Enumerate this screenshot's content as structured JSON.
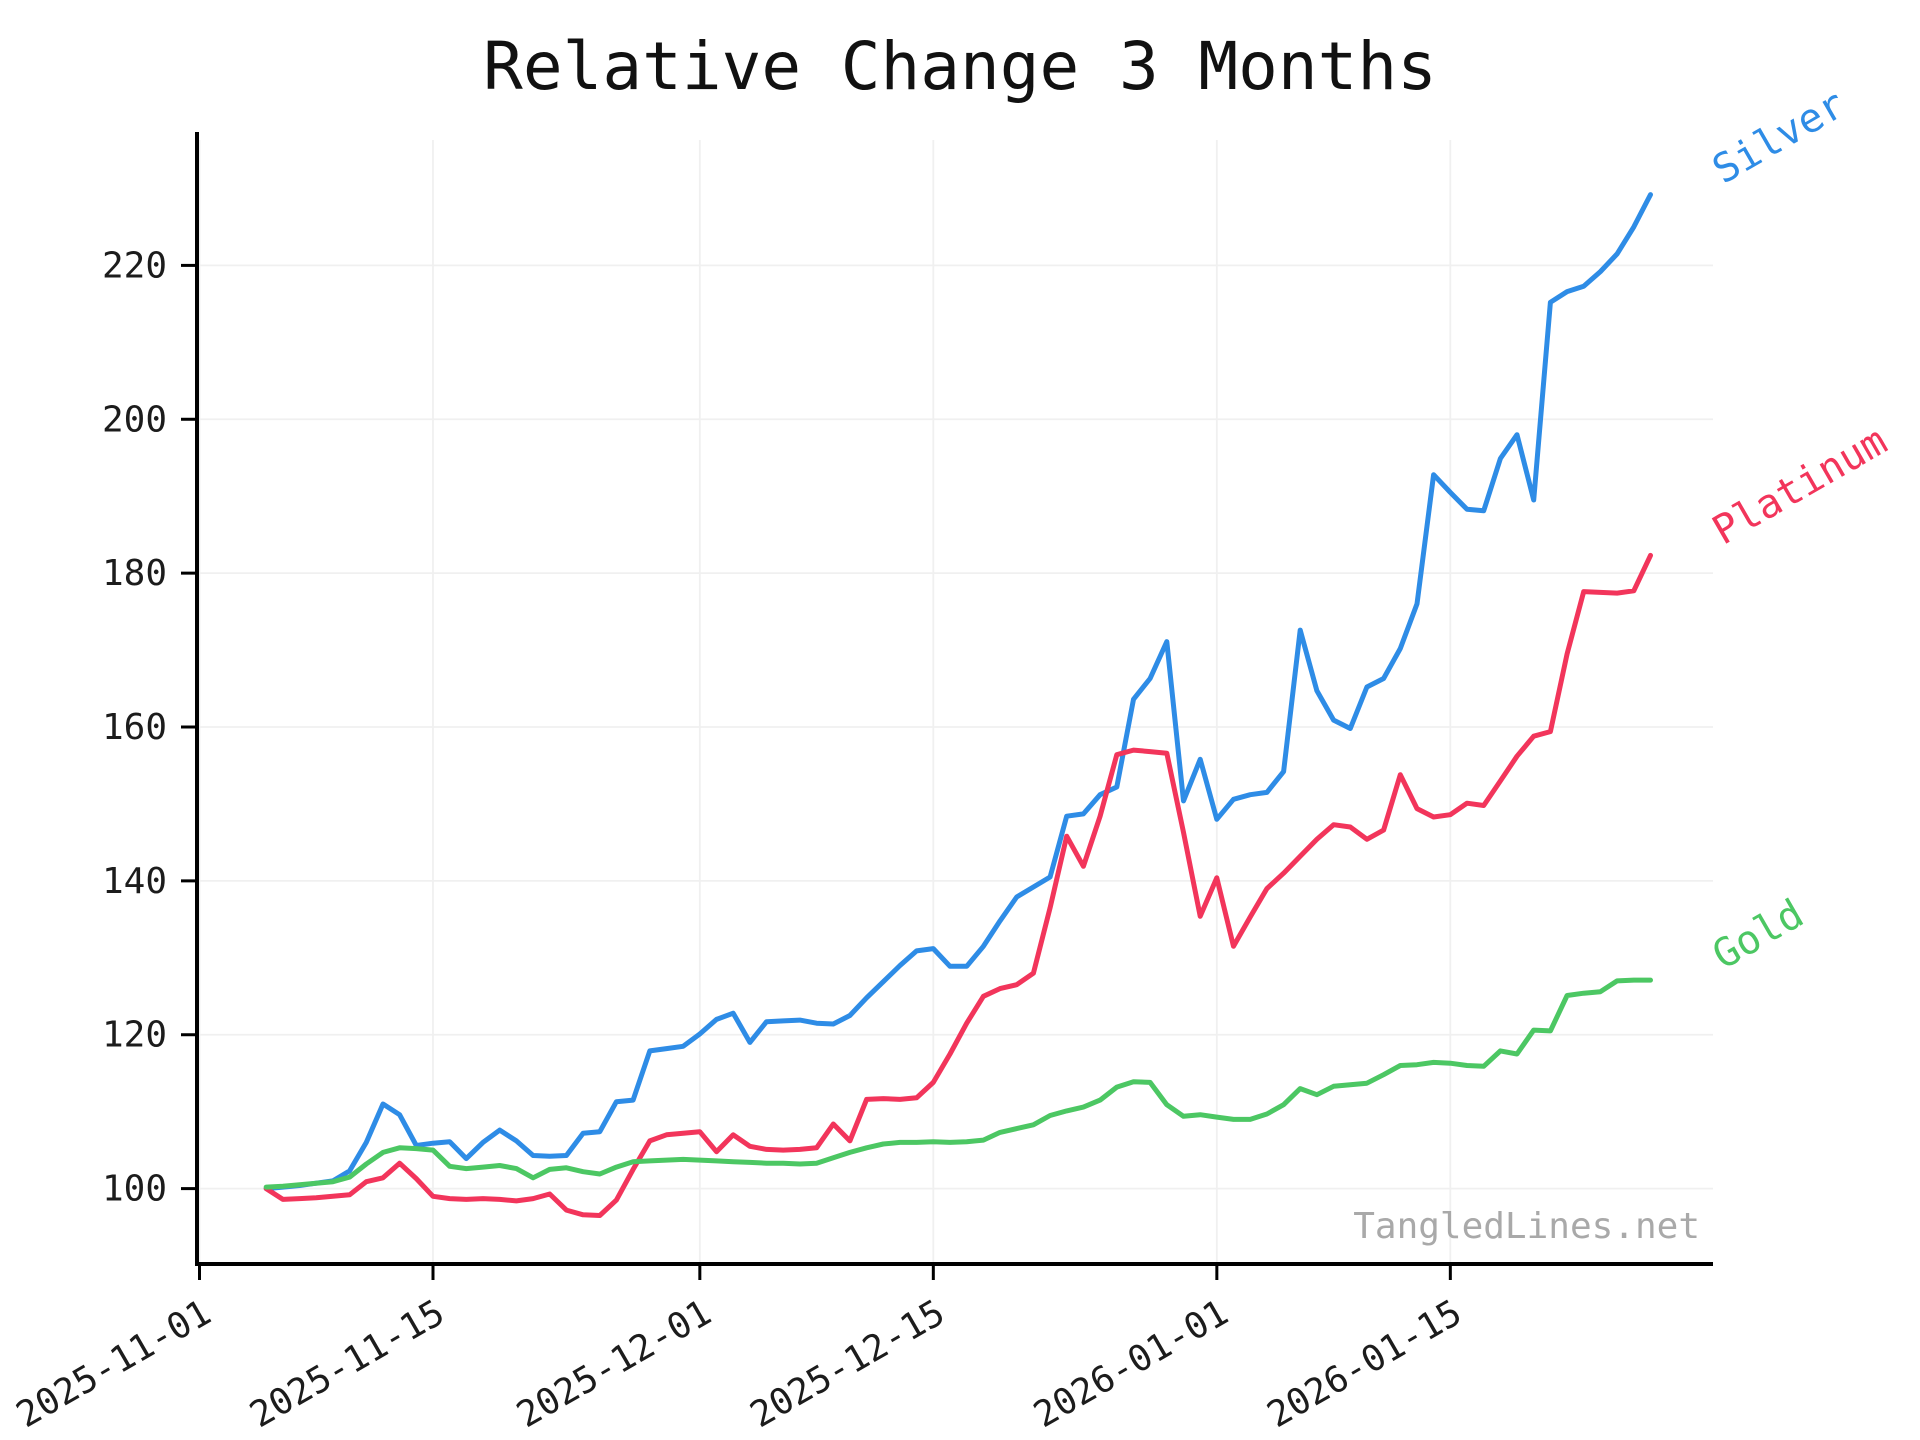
{
  "watermark": {
    "text": "TangledLines.net"
  },
  "chart_data": {
    "type": "line",
    "title": "Relative Change 3 Months",
    "xlabel": "",
    "ylabel": "",
    "grid": true,
    "legend_position": "line-end-labels",
    "x_start_date": "2025-11-05",
    "x_frequency": "daily",
    "x_tick_labels": [
      "2025-11-01",
      "2025-11-15",
      "2025-12-01",
      "2025-12-15",
      "2026-01-01",
      "2026-01-15"
    ],
    "x_tick_day_offsets": [
      -4,
      10,
      26,
      40,
      57,
      71
    ],
    "xlim_days": [
      -4.15,
      86.75
    ],
    "y_ticks": [
      100,
      120,
      140,
      160,
      180,
      200,
      220
    ],
    "ylim": [
      90.2,
      236.3
    ],
    "series": [
      {
        "name": "Silver",
        "color": "#2E8CE6",
        "values": [
          100.0,
          100.2,
          100.4,
          100.7,
          101.0,
          102.3,
          106.0,
          111.0,
          109.6,
          105.6,
          105.9,
          106.1,
          103.9,
          106.0,
          107.6,
          106.2,
          104.3,
          104.2,
          104.3,
          107.2,
          107.4,
          111.3,
          111.5,
          117.9,
          118.2,
          118.5,
          120.1,
          122.0,
          122.8,
          119.0,
          121.7,
          121.8,
          121.9,
          121.5,
          121.4,
          122.5,
          124.8,
          126.9,
          129.0,
          130.9,
          131.2,
          128.9,
          128.9,
          131.5,
          134.8,
          137.9,
          139.2,
          140.5,
          148.4,
          148.7,
          151.2,
          152.2,
          163.6,
          166.3,
          171.1,
          150.4,
          155.8,
          148.0,
          150.6,
          151.2,
          151.5,
          154.2,
          172.6,
          164.7,
          160.9,
          159.8,
          165.2,
          166.3,
          170.2,
          176.0,
          192.8,
          190.5,
          188.3,
          188.1,
          194.9,
          198.0,
          189.5,
          215.2,
          216.6,
          217.3,
          219.2,
          221.5,
          225.0,
          229.2
        ]
      },
      {
        "name": "Platinum",
        "color": "#F2355B",
        "values": [
          100.0,
          98.6,
          98.7,
          98.8,
          99.0,
          99.2,
          100.9,
          101.4,
          103.3,
          101.3,
          99.0,
          98.7,
          98.6,
          98.7,
          98.6,
          98.4,
          98.7,
          99.3,
          97.2,
          96.6,
          96.5,
          98.5,
          102.5,
          106.2,
          107.0,
          107.2,
          107.4,
          104.8,
          107.0,
          105.5,
          105.1,
          105.0,
          105.1,
          105.3,
          108.4,
          106.2,
          111.6,
          111.7,
          111.6,
          111.8,
          113.8,
          117.5,
          121.5,
          125.0,
          126.0,
          126.5,
          128.0,
          136.5,
          145.8,
          141.9,
          148.4,
          156.4,
          157.0,
          156.8,
          156.6,
          146.3,
          135.4,
          140.4,
          131.5,
          135.3,
          139.0,
          141.0,
          143.2,
          145.4,
          147.3,
          147.0,
          145.4,
          146.6,
          153.8,
          149.4,
          148.3,
          148.6,
          150.1,
          149.8,
          153.0,
          156.2,
          158.8,
          159.4,
          169.5,
          177.6,
          177.5,
          177.4,
          177.7,
          182.3
        ]
      },
      {
        "name": "Gold",
        "color": "#4CC763",
        "values": [
          100.2,
          100.3,
          100.5,
          100.7,
          100.9,
          101.5,
          103.2,
          104.7,
          105.3,
          105.2,
          105.0,
          102.9,
          102.6,
          102.8,
          103.0,
          102.6,
          101.4,
          102.5,
          102.7,
          102.2,
          101.9,
          102.8,
          103.5,
          103.6,
          103.7,
          103.8,
          103.7,
          103.6,
          103.5,
          103.4,
          103.3,
          103.3,
          103.2,
          103.3,
          104.0,
          104.7,
          105.3,
          105.8,
          106.0,
          106.0,
          106.1,
          106.0,
          106.1,
          106.3,
          107.3,
          107.8,
          108.3,
          109.5,
          110.1,
          110.6,
          111.5,
          113.2,
          113.9,
          113.8,
          110.9,
          109.4,
          109.6,
          109.3,
          109.0,
          109.0,
          109.7,
          110.9,
          113.0,
          112.2,
          113.3,
          113.5,
          113.7,
          114.8,
          116.0,
          116.1,
          116.4,
          116.3,
          116.0,
          115.9,
          117.9,
          117.5,
          120.6,
          120.5,
          125.1,
          125.4,
          125.6,
          127.0,
          127.1,
          127.1
        ]
      }
    ]
  }
}
